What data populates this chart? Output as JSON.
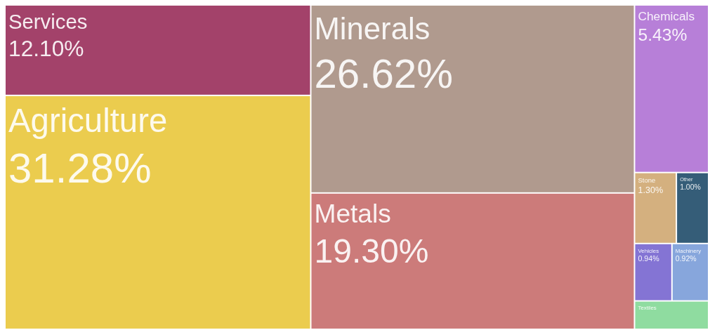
{
  "chart_data": {
    "type": "other",
    "categories": [
      "Services",
      "Agriculture",
      "Minerals",
      "Metals",
      "Chemicals",
      "Stone",
      "Other",
      "Vehicles",
      "Machinery",
      "Textiles"
    ],
    "values": [
      12.1,
      31.28,
      26.62,
      19.3,
      5.43,
      1.3,
      1.0,
      0.94,
      0.92,
      null
    ],
    "value_labels": [
      "12.10%",
      "31.28%",
      "26.62%",
      "19.30%",
      "5.43%",
      "1.30%",
      "1.00%",
      "0.94%",
      "0.92%",
      null
    ],
    "colors": [
      "#a3426a",
      "#ebcc4e",
      "#b09a8e",
      "#cc7b7a",
      "#b77fd8",
      "#d4b07f",
      "#355d78",
      "#8474d4",
      "#87a6dc",
      "#8fdca0"
    ]
  }
}
